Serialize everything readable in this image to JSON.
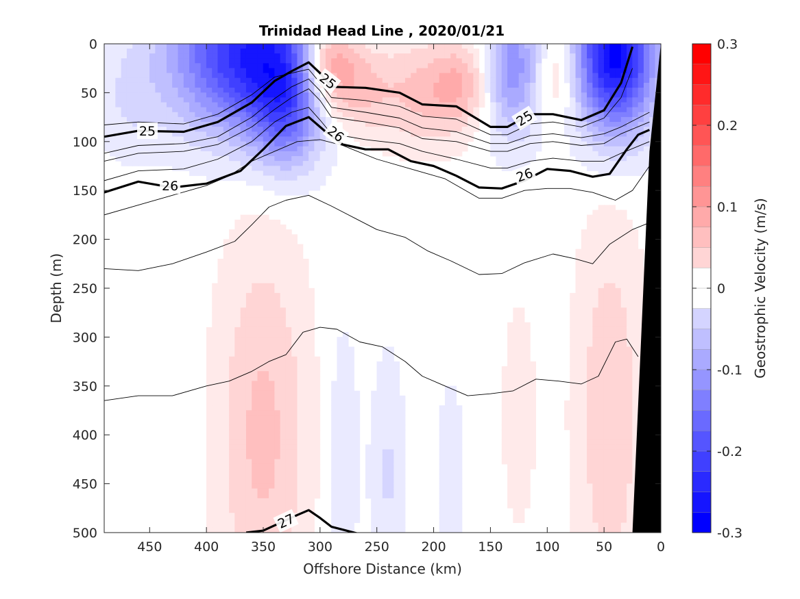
{
  "chart_data": {
    "type": "heatmap",
    "title": "Trinidad Head Line , 2020/01/21",
    "xlabel": "Offshore Distance (km)",
    "ylabel": "Depth (m)",
    "colorbar_label": "Geostrophic Velocity (m/s)",
    "xlim": [
      490,
      0
    ],
    "ylim": [
      500,
      0
    ],
    "x_reversed": true,
    "y_reversed": true,
    "x_ticks": [
      450,
      400,
      350,
      300,
      250,
      200,
      150,
      100,
      50,
      0
    ],
    "y_ticks": [
      0,
      50,
      100,
      150,
      200,
      250,
      300,
      350,
      400,
      450,
      500
    ],
    "colorbar_range": [
      -0.3,
      0.3
    ],
    "colorbar_ticks": [
      0.3,
      0.2,
      0.1,
      0,
      -0.1,
      -0.2,
      -0.3
    ],
    "colorbar_tick_labels": [
      "0.3",
      "0.2",
      "0.1",
      "0",
      "-0.1",
      "-0.2",
      "-0.3"
    ],
    "colorbar_step": 0.025,
    "colors": {
      "positive": "#ff0000",
      "negative": "#0000ff",
      "zero": "#ffffff",
      "bathymetry": "#000000"
    },
    "velocity_features": [
      {
        "x": 360,
        "z": 10,
        "rx": 70,
        "rz": 80,
        "v": -0.26
      },
      {
        "x": 330,
        "z": 70,
        "rx": 30,
        "rz": 60,
        "v": -0.12
      },
      {
        "x": 295,
        "z": 15,
        "rx": 25,
        "rz": 50,
        "v": 0.15
      },
      {
        "x": 270,
        "z": 40,
        "rx": 30,
        "rz": 50,
        "v": 0.08
      },
      {
        "x": 210,
        "z": 50,
        "rx": 45,
        "rz": 55,
        "v": 0.07
      },
      {
        "x": 175,
        "z": 40,
        "rx": 25,
        "rz": 40,
        "v": 0.06
      },
      {
        "x": 130,
        "z": 25,
        "rx": 25,
        "rz": 70,
        "v": -0.13
      },
      {
        "x": 90,
        "z": 30,
        "rx": 20,
        "rz": 50,
        "v": 0.06
      },
      {
        "x": 40,
        "z": 10,
        "rx": 35,
        "rz": 80,
        "v": -0.3
      },
      {
        "x": 470,
        "z": 60,
        "rx": 30,
        "rz": 60,
        "v": -0.03
      },
      {
        "x": 350,
        "z": 400,
        "rx": 40,
        "rz": 200,
        "v": 0.07
      },
      {
        "x": 45,
        "z": 380,
        "rx": 30,
        "rz": 200,
        "v": 0.06
      },
      {
        "x": 125,
        "z": 380,
        "rx": 15,
        "rz": 120,
        "v": 0.03
      },
      {
        "x": 280,
        "z": 420,
        "rx": 15,
        "rz": 150,
        "v": -0.03
      },
      {
        "x": 240,
        "z": 440,
        "rx": 15,
        "rz": 120,
        "v": -0.04
      },
      {
        "x": 185,
        "z": 440,
        "rx": 12,
        "rz": 100,
        "v": -0.03
      }
    ],
    "isopycnals": [
      {
        "level": "25",
        "bold": true,
        "points": [
          [
            490,
            95
          ],
          [
            460,
            89
          ],
          [
            420,
            90
          ],
          [
            390,
            80
          ],
          [
            360,
            60
          ],
          [
            340,
            38
          ],
          [
            325,
            28
          ],
          [
            310,
            19
          ],
          [
            300,
            30
          ],
          [
            290,
            44
          ],
          [
            260,
            45
          ],
          [
            230,
            50
          ],
          [
            210,
            62
          ],
          [
            180,
            64
          ],
          [
            150,
            85
          ],
          [
            135,
            85
          ],
          [
            115,
            72
          ],
          [
            95,
            72
          ],
          [
            70,
            78
          ],
          [
            50,
            68
          ],
          [
            35,
            40
          ],
          [
            25,
            3
          ]
        ]
      },
      {
        "level": "",
        "bold": false,
        "points": [
          [
            490,
            83
          ],
          [
            460,
            80
          ],
          [
            420,
            82
          ],
          [
            390,
            72
          ],
          [
            360,
            52
          ],
          [
            340,
            34
          ],
          [
            325,
            30
          ],
          [
            310,
            26
          ],
          [
            300,
            40
          ],
          [
            290,
            55
          ],
          [
            260,
            58
          ],
          [
            230,
            64
          ],
          [
            210,
            74
          ],
          [
            180,
            77
          ],
          [
            150,
            93
          ],
          [
            135,
            93
          ],
          [
            115,
            82
          ],
          [
            95,
            80
          ],
          [
            70,
            85
          ],
          [
            50,
            76
          ],
          [
            35,
            55
          ],
          [
            25,
            25
          ]
        ]
      },
      {
        "level": "",
        "bold": false,
        "points": [
          [
            490,
            112
          ],
          [
            460,
            104
          ],
          [
            420,
            102
          ],
          [
            390,
            95
          ],
          [
            360,
            75
          ],
          [
            340,
            56
          ],
          [
            325,
            44
          ],
          [
            310,
            36
          ],
          [
            300,
            48
          ],
          [
            290,
            65
          ],
          [
            260,
            70
          ],
          [
            230,
            76
          ],
          [
            210,
            86
          ],
          [
            180,
            90
          ],
          [
            150,
            102
          ],
          [
            135,
            102
          ],
          [
            115,
            94
          ],
          [
            95,
            92
          ],
          [
            70,
            96
          ],
          [
            50,
            92
          ],
          [
            35,
            85
          ],
          [
            10,
            70
          ]
        ]
      },
      {
        "level": "",
        "bold": false,
        "points": [
          [
            490,
            120
          ],
          [
            460,
            112
          ],
          [
            420,
            110
          ],
          [
            390,
            103
          ],
          [
            360,
            85
          ],
          [
            340,
            67
          ],
          [
            325,
            55
          ],
          [
            310,
            46
          ],
          [
            300,
            58
          ],
          [
            290,
            75
          ],
          [
            260,
            80
          ],
          [
            230,
            86
          ],
          [
            210,
            97
          ],
          [
            180,
            100
          ],
          [
            150,
            110
          ],
          [
            135,
            110
          ],
          [
            115,
            102
          ],
          [
            95,
            100
          ],
          [
            70,
            104
          ],
          [
            50,
            102
          ],
          [
            35,
            92
          ],
          [
            10,
            80
          ]
        ]
      },
      {
        "level": "26",
        "bold": true,
        "points": [
          [
            490,
            152
          ],
          [
            460,
            141
          ],
          [
            430,
            147
          ],
          [
            400,
            143
          ],
          [
            370,
            130
          ],
          [
            350,
            108
          ],
          [
            330,
            84
          ],
          [
            310,
            75
          ],
          [
            295,
            90
          ],
          [
            280,
            103
          ],
          [
            260,
            108
          ],
          [
            240,
            108
          ],
          [
            220,
            120
          ],
          [
            200,
            125
          ],
          [
            180,
            135
          ],
          [
            160,
            147
          ],
          [
            140,
            148
          ],
          [
            120,
            140
          ],
          [
            100,
            128
          ],
          [
            80,
            130
          ],
          [
            60,
            136
          ],
          [
            45,
            133
          ],
          [
            30,
            108
          ],
          [
            20,
            93
          ],
          [
            10,
            88
          ]
        ]
      },
      {
        "level": "",
        "bold": false,
        "points": [
          [
            490,
            140
          ],
          [
            460,
            130
          ],
          [
            420,
            128
          ],
          [
            390,
            118
          ],
          [
            360,
            100
          ],
          [
            340,
            80
          ],
          [
            325,
            70
          ],
          [
            310,
            65
          ],
          [
            300,
            78
          ],
          [
            290,
            92
          ],
          [
            260,
            98
          ],
          [
            230,
            102
          ],
          [
            210,
            110
          ],
          [
            180,
            118
          ],
          [
            150,
            127
          ],
          [
            135,
            127
          ],
          [
            115,
            120
          ],
          [
            95,
            117
          ],
          [
            70,
            120
          ],
          [
            50,
            120
          ],
          [
            35,
            112
          ],
          [
            10,
            100
          ]
        ]
      },
      {
        "level": "",
        "bold": false,
        "points": [
          [
            490,
            175
          ],
          [
            460,
            165
          ],
          [
            430,
            155
          ],
          [
            400,
            145
          ],
          [
            380,
            135
          ],
          [
            360,
            120
          ],
          [
            340,
            110
          ],
          [
            320,
            100
          ],
          [
            300,
            98
          ],
          [
            280,
            104
          ],
          [
            250,
            118
          ],
          [
            220,
            128
          ],
          [
            190,
            138
          ],
          [
            160,
            158
          ],
          [
            140,
            158
          ],
          [
            120,
            150
          ],
          [
            100,
            148
          ],
          [
            80,
            148
          ],
          [
            60,
            152
          ],
          [
            40,
            160
          ],
          [
            25,
            150
          ],
          [
            10,
            125
          ]
        ]
      },
      {
        "level": "",
        "bold": false,
        "points": [
          [
            490,
            230
          ],
          [
            460,
            232
          ],
          [
            430,
            225
          ],
          [
            400,
            213
          ],
          [
            375,
            202
          ],
          [
            360,
            185
          ],
          [
            345,
            167
          ],
          [
            330,
            160
          ],
          [
            310,
            155
          ],
          [
            290,
            166
          ],
          [
            270,
            178
          ],
          [
            250,
            190
          ],
          [
            225,
            198
          ],
          [
            205,
            212
          ],
          [
            185,
            222
          ],
          [
            160,
            236
          ],
          [
            140,
            235
          ],
          [
            120,
            224
          ],
          [
            95,
            215
          ],
          [
            75,
            220
          ],
          [
            60,
            225
          ],
          [
            45,
            205
          ],
          [
            25,
            190
          ],
          [
            10,
            183
          ]
        ]
      },
      {
        "level": "",
        "bold": false,
        "points": [
          [
            490,
            365
          ],
          [
            460,
            360
          ],
          [
            430,
            360
          ],
          [
            400,
            350
          ],
          [
            380,
            345
          ],
          [
            360,
            335
          ],
          [
            345,
            325
          ],
          [
            330,
            318
          ],
          [
            315,
            295
          ],
          [
            300,
            290
          ],
          [
            285,
            292
          ],
          [
            265,
            305
          ],
          [
            245,
            310
          ],
          [
            225,
            325
          ],
          [
            210,
            340
          ],
          [
            190,
            350
          ],
          [
            170,
            360
          ],
          [
            150,
            358
          ],
          [
            130,
            355
          ],
          [
            110,
            343
          ],
          [
            90,
            345
          ],
          [
            70,
            348
          ],
          [
            55,
            340
          ],
          [
            40,
            305
          ],
          [
            30,
            302
          ],
          [
            20,
            320
          ]
        ]
      },
      {
        "level": "27",
        "bold": true,
        "points": [
          [
            365,
            500
          ],
          [
            350,
            498
          ],
          [
            335,
            490
          ],
          [
            320,
            482
          ],
          [
            310,
            477
          ],
          [
            300,
            485
          ],
          [
            290,
            494
          ],
          [
            280,
            497
          ],
          [
            260,
            503
          ]
        ]
      }
    ],
    "contour_labels": [
      {
        "text": "25",
        "x": 293,
        "z": 38,
        "angle": 38
      },
      {
        "text": "25",
        "x": 452,
        "z": 89,
        "angle": 0
      },
      {
        "text": "25",
        "x": 120,
        "z": 76,
        "angle": -32
      },
      {
        "text": "26",
        "x": 286,
        "z": 92,
        "angle": 38
      },
      {
        "text": "26",
        "x": 432,
        "z": 145,
        "angle": 0
      },
      {
        "text": "26",
        "x": 120,
        "z": 134,
        "angle": -20
      },
      {
        "text": "27",
        "x": 330,
        "z": 488,
        "angle": -25
      }
    ],
    "bathymetry": [
      [
        0,
        0
      ],
      [
        0,
        500
      ],
      [
        25,
        500
      ],
      [
        10,
        110
      ],
      [
        0,
        0
      ]
    ]
  }
}
